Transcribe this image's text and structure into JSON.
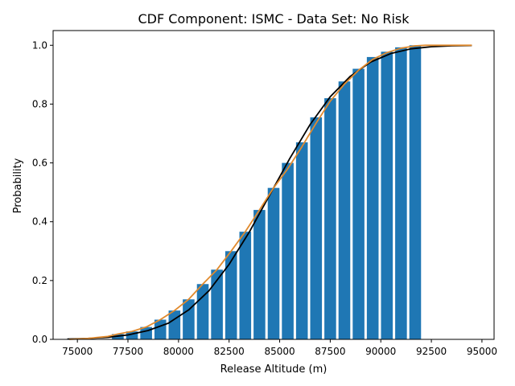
{
  "chart_data": {
    "type": "bar",
    "title": "CDF Component: ISMC - Data Set: No Risk",
    "xlabel": "Release Altitude (m)",
    "ylabel": "Probability",
    "xlim": [
      73800,
      95600
    ],
    "ylim": [
      0,
      1.05
    ],
    "xticks": [
      75000,
      77500,
      80000,
      82500,
      85000,
      87500,
      90000,
      92500,
      95000
    ],
    "yticks": [
      0.0,
      0.2,
      0.4,
      0.6,
      0.8,
      1.0
    ],
    "xtick_labels": [
      "75000",
      "77500",
      "80000",
      "82500",
      "85000",
      "87500",
      "90000",
      "92500",
      "95000"
    ],
    "ytick_labels": [
      "0.0",
      "0.2",
      "0.4",
      "0.6",
      "0.8",
      "1.0"
    ],
    "grid": false,
    "bar_color": "#1f77b4",
    "bar_width": 580,
    "bars": {
      "x": [
        77000,
        77700,
        78400,
        79100,
        79800,
        80500,
        81200,
        81900,
        82600,
        83300,
        84000,
        84700,
        85400,
        86100,
        86800,
        87500,
        88200,
        88900,
        89600,
        90300,
        91000,
        91700
      ],
      "values": [
        0.018,
        0.027,
        0.042,
        0.067,
        0.098,
        0.136,
        0.188,
        0.237,
        0.3,
        0.366,
        0.44,
        0.515,
        0.6,
        0.67,
        0.755,
        0.82,
        0.877,
        0.92,
        0.96,
        0.978,
        0.993,
        1.0
      ]
    },
    "series": [
      {
        "type": "line",
        "color": "#000000",
        "x": [
          74500,
          75500,
          76500,
          77500,
          78500,
          79500,
          80500,
          81500,
          82500,
          83500,
          84500,
          85500,
          86500,
          87500,
          88500,
          89500,
          90500,
          91500,
          92500,
          93500,
          94500
        ],
        "values": [
          0.001,
          0.003,
          0.007,
          0.015,
          0.03,
          0.055,
          0.1,
          0.165,
          0.255,
          0.365,
          0.49,
          0.615,
          0.73,
          0.825,
          0.895,
          0.943,
          0.972,
          0.988,
          0.995,
          0.998,
          0.999
        ]
      },
      {
        "type": "line",
        "color": "#e08a2e",
        "x": [
          74600,
          75500,
          76500,
          77000,
          77700,
          78400,
          79100,
          79800,
          80500,
          81200,
          81900,
          82600,
          83300,
          84000,
          84700,
          85400,
          86100,
          86800,
          87500,
          88200,
          88900,
          89600,
          90300,
          91000,
          91700,
          92200,
          94500
        ],
        "values": [
          0.0,
          0.003,
          0.01,
          0.018,
          0.027,
          0.042,
          0.067,
          0.098,
          0.136,
          0.188,
          0.237,
          0.3,
          0.366,
          0.44,
          0.515,
          0.58,
          0.655,
          0.735,
          0.81,
          0.868,
          0.915,
          0.952,
          0.975,
          0.99,
          0.998,
          1.0,
          1.0
        ]
      }
    ]
  }
}
